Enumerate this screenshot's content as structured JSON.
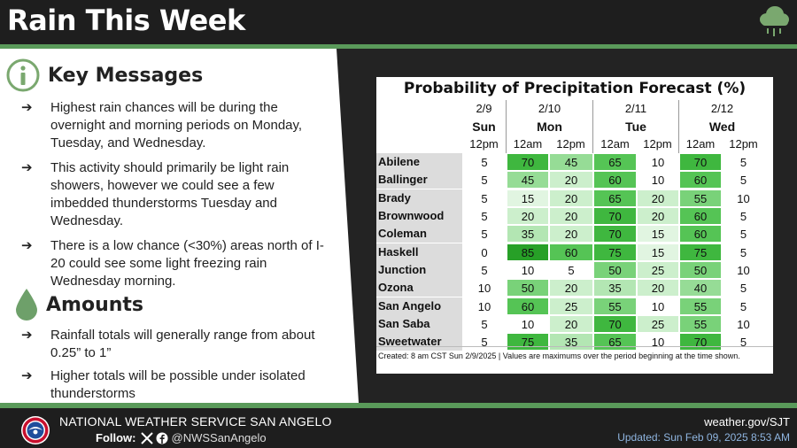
{
  "header": {
    "title": "Rain This Week"
  },
  "key_messages": {
    "title": "Key Messages",
    "items": [
      "Highest rain chances will be during the overnight and morning periods on Monday, Tuesday, and Wednesday.",
      "This activity should primarily be light rain showers, however we could see a few imbedded thunderstorms Tuesday and Wednesday.",
      "There is a low chance (<30%) areas north of I-20 could see some light freezing rain Wednesday morning."
    ]
  },
  "amounts": {
    "title": "Amounts",
    "items": [
      "Rainfall totals will generally range from about 0.25” to 1”",
      "Higher totals will be possible under isolated thunderstorms"
    ]
  },
  "bullet_arrow": "➔",
  "table": {
    "title": "Probability of Precipitation Forecast (%)",
    "dates": [
      "2/9",
      "2/10",
      "2/11",
      "2/12"
    ],
    "days": [
      "Sun",
      "Mon",
      "Tue",
      "Wed"
    ],
    "times": [
      "12pm",
      "12am",
      "12pm",
      "12am",
      "12pm",
      "12am",
      "12pm"
    ],
    "rows": [
      {
        "city": "Abilene",
        "values": [
          5,
          70,
          45,
          65,
          10,
          70,
          5
        ]
      },
      {
        "city": "Ballinger",
        "values": [
          5,
          45,
          20,
          60,
          10,
          60,
          5
        ]
      },
      {
        "city": "Brady",
        "values": [
          5,
          15,
          20,
          65,
          20,
          55,
          10
        ]
      },
      {
        "city": "Brownwood",
        "values": [
          5,
          20,
          20,
          70,
          20,
          60,
          5
        ]
      },
      {
        "city": "Coleman",
        "values": [
          5,
          35,
          20,
          70,
          15,
          60,
          5
        ]
      },
      {
        "city": "Haskell",
        "values": [
          0,
          85,
          60,
          75,
          15,
          75,
          5
        ]
      },
      {
        "city": "Junction",
        "values": [
          5,
          10,
          5,
          50,
          25,
          50,
          10
        ]
      },
      {
        "city": "Ozona",
        "values": [
          10,
          50,
          20,
          35,
          20,
          40,
          5
        ]
      },
      {
        "city": "San Angelo",
        "values": [
          10,
          60,
          25,
          55,
          10,
          55,
          5
        ]
      },
      {
        "city": "San Saba",
        "values": [
          5,
          10,
          20,
          70,
          25,
          55,
          10
        ]
      },
      {
        "city": "Sweetwater",
        "values": [
          5,
          75,
          35,
          65,
          10,
          70,
          5
        ]
      }
    ],
    "footnote": "Created: 8 am CST Sun 2/9/2025  |  Values are maximums over the period beginning at the time shown."
  },
  "footer": {
    "office": "NATIONAL WEATHER SERVICE SAN ANGELO",
    "follow_label": "Follow:",
    "handle": "@NWSSanAngelo",
    "website": "weather.gov/SJT",
    "updated": "Updated: Sun Feb 09, 2025 8:53 AM"
  },
  "colors": {
    "accent_green": "#5a9a5a",
    "info_icon": "#7aa86f",
    "raindrop": "#6ea06a"
  },
  "icons": [
    "rain-cloud-icon",
    "info-icon",
    "raindrop-icon",
    "arrow-icon",
    "x-icon",
    "facebook-icon",
    "nws-logo"
  ]
}
